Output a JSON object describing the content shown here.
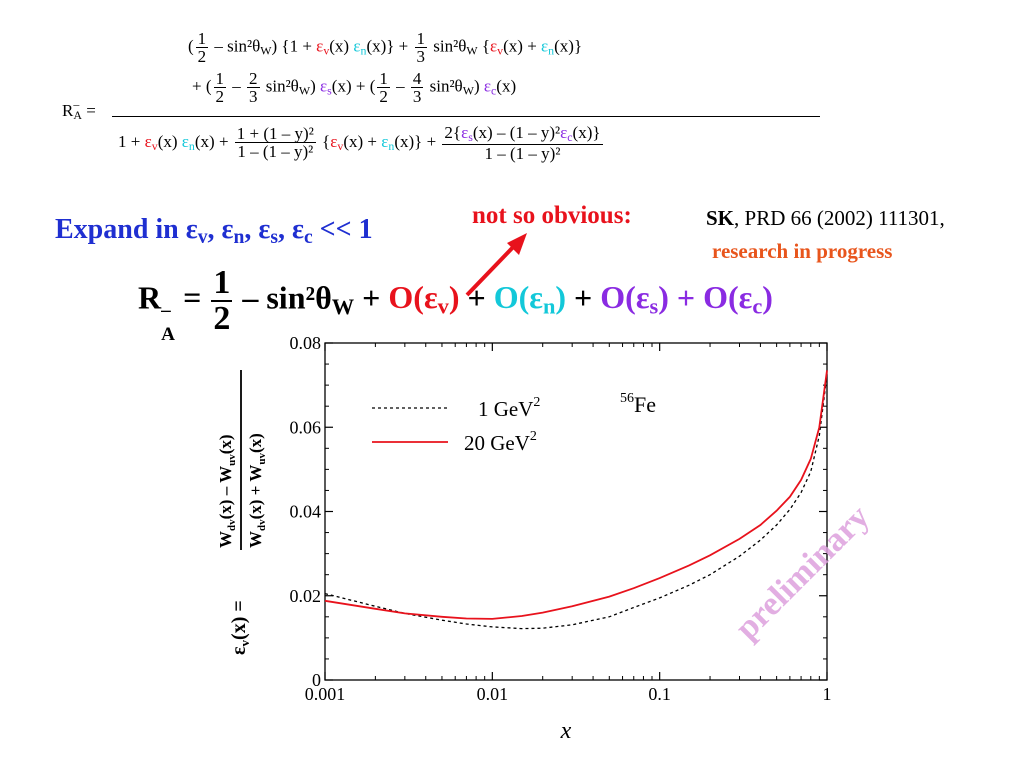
{
  "formula_top": {
    "lhs": "R",
    "lhs_sup": "–",
    "lhs_sub": "A",
    "equals": "=",
    "num_line1": {
      "open": "(",
      "f1_num": "1",
      "f1_den": "2",
      "t1": "– sin²θ",
      "t1_sub": "W",
      "t2": ") {1 + ",
      "eps": "ε",
      "v": "v",
      "n": "n",
      "x": "(x)",
      "t3": "} + ",
      "f2_num": "1",
      "f2_den": "3",
      "t4": " sin²θ",
      "t4_sub": "W",
      "t5": " {",
      "plus": " + ",
      "close": "}"
    },
    "num_line2": {
      "t0": "+ (",
      "f1_num": "1",
      "f1_den": "2",
      "t1": "–",
      "f2_num": "2",
      "f2_den": "3",
      "t2": "sin²θ",
      "t2_sub": "W",
      "t3": ")",
      "eps": "ε",
      "s": "s",
      "c": "c",
      "x": "(x)",
      "t4": " + (",
      "f3_num": "1",
      "f3_den": "2",
      "t5": "–",
      "f4_num": "4",
      "f4_den": "3",
      "t6": "sin²θ",
      "t6_sub": "W",
      "t7": ")"
    },
    "den_line": {
      "t0": "1 + ",
      "eps": "ε",
      "v": "v",
      "n": "n",
      "s": "s",
      "c": "c",
      "x": "(x)",
      "plus": " + ",
      "f1_num": "1 + (1 – y)²",
      "f1_den": "1 – (1 – y)²",
      "br_open": "{",
      "br_close": "}",
      "f2_num_a": "2{",
      "f2_num_b": "(x) – (1 – y)²",
      "f2_num_c": "(x)}",
      "f2_den": "1 – (1 – y)²"
    }
  },
  "expand_text": {
    "prefix": "Expand in ",
    "eps": "ε",
    "v": "v",
    "n": "n",
    "s": "s",
    "c": "c",
    "sep": ", ",
    "suffix": " << 1"
  },
  "note": {
    "label": "not so obvious:",
    "ref_bold": "SK",
    "ref_rest": ", PRD 66 (2002) 111301,",
    "progress": "research in progress"
  },
  "formula_main": {
    "lhs": "R",
    "lhs_sup": "–",
    "lhs_sub": "A",
    "equals": " = ",
    "half_num": "1",
    "half_den": "2",
    "mid": " – sin²θ",
    "mid_sub": "W",
    "plus": " + ",
    "o_v": "O(ε",
    "v": "v",
    "o_n": "O(ε",
    "n": "n",
    "o_s": "O(ε",
    "s": "s",
    "o_c": "O(ε",
    "c": "c",
    "close": ")"
  },
  "watermark": "preliminary",
  "chart_data": {
    "type": "line",
    "x_scale": "log",
    "xlim": [
      0.001,
      1
    ],
    "ylim": [
      0,
      0.08
    ],
    "xticks": [
      "0.001",
      "0.01",
      "0.1",
      "1"
    ],
    "yticks": [
      "0",
      "0.02",
      "0.04",
      "0.06",
      "0.08"
    ],
    "xlabel": "x",
    "ylabel": "ε_v(x) = (W_dv(x) – W_uv(x)) / (W_dv(x) + W_uv(x))",
    "ylabel_parts": {
      "lhs": "ε",
      "lhs_sub": "v",
      "lhs_arg": "(x) = ",
      "num": "W",
      "num_sub1": "dv",
      "num_mid": "(x) – W",
      "num_sub2": "uv",
      "num_end": "(x)",
      "den": "W",
      "den_sub1": "dv",
      "den_mid": "(x) + W",
      "den_sub2": "uv",
      "den_end": "(x)"
    },
    "annotation": {
      "sup": "56",
      "text": "Fe"
    },
    "legend": [
      {
        "name_main": "1 GeV",
        "name_sup": "2",
        "style": "dotted",
        "color": "#000000"
      },
      {
        "name_main": "20 GeV",
        "name_sup": "2",
        "style": "solid",
        "color": "#e8121c"
      }
    ],
    "series": [
      {
        "name": "1 GeV²",
        "style": "dotted",
        "color": "#000000",
        "x": [
          0.001,
          0.002,
          0.003,
          0.005,
          0.007,
          0.01,
          0.015,
          0.02,
          0.03,
          0.05,
          0.07,
          0.1,
          0.15,
          0.2,
          0.3,
          0.4,
          0.5,
          0.6,
          0.7,
          0.8,
          0.9,
          1.0
        ],
        "values": [
          0.0205,
          0.0175,
          0.0158,
          0.0142,
          0.0133,
          0.0126,
          0.0122,
          0.0123,
          0.0131,
          0.015,
          0.0172,
          0.0195,
          0.0225,
          0.025,
          0.0294,
          0.0332,
          0.0368,
          0.0405,
          0.0445,
          0.0495,
          0.058,
          0.0725
        ]
      },
      {
        "name": "20 GeV²",
        "style": "solid",
        "color": "#e8121c",
        "x": [
          0.001,
          0.002,
          0.003,
          0.005,
          0.007,
          0.01,
          0.015,
          0.02,
          0.03,
          0.05,
          0.07,
          0.1,
          0.15,
          0.2,
          0.3,
          0.4,
          0.5,
          0.6,
          0.7,
          0.8,
          0.9,
          1.0
        ],
        "values": [
          0.0188,
          0.0169,
          0.0158,
          0.015,
          0.0146,
          0.0145,
          0.0152,
          0.016,
          0.0175,
          0.0198,
          0.0218,
          0.0242,
          0.0272,
          0.0296,
          0.0335,
          0.0368,
          0.0402,
          0.0435,
          0.0475,
          0.0525,
          0.06,
          0.0735
        ]
      }
    ]
  }
}
